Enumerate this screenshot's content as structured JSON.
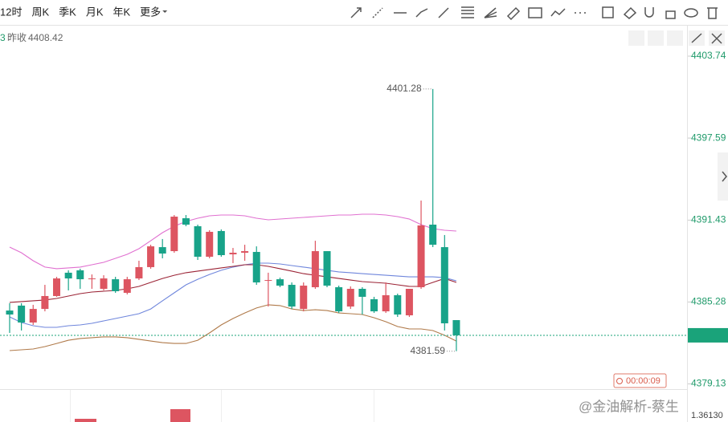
{
  "toolbar": {
    "periods": [
      "12时",
      "周K",
      "季K",
      "月K",
      "年K",
      "更多"
    ]
  },
  "info": {
    "label": "昨收",
    "value": "4408.42"
  },
  "countdown": "00:00:09",
  "watermark": "@金油解析-蔡生",
  "lower_axis_label": "1.36130",
  "chart_data": {
    "type": "candlestick",
    "up_color": "#dd5561",
    "down_color": "#18a389",
    "ylim": [
      4378.74,
      4406.03
    ],
    "yticks": [
      4403.74,
      4397.59,
      4391.43,
      4385.28,
      4379.13
    ],
    "open": [
      4384.64,
      4385.01,
      4383.74,
      4384.76,
      4385.73,
      4387.48,
      4387.66,
      4386.99,
      4386.27,
      4386.99,
      4385.97,
      4387.05,
      4387.9,
      4389.4,
      4389.1,
      4391.57,
      4390.97,
      4388.68,
      4390.61,
      4388.86,
      4388.98,
      4389.04,
      4386.87,
      4386.99,
      4386.57,
      4384.76,
      4386.39,
      4389.1,
      4386.39,
      4384.94,
      4386.27,
      4385.49,
      4384.58,
      4385.79,
      4384.28,
      4386.39,
      4391.09,
      4389.4,
      4383.92
    ],
    "high": [
      4385.19,
      4385.19,
      4385.07,
      4386.57,
      4387.17,
      4387.66,
      4387.78,
      4387.35,
      4387.29,
      4387.17,
      4387.17,
      4388.38,
      4389.58,
      4390.01,
      4391.81,
      4391.81,
      4391.09,
      4390.67,
      4390.73,
      4389.34,
      4389.58,
      4389.46,
      4387.48,
      4387.11,
      4386.75,
      4386.75,
      4389.88,
      4389.1,
      4386.51,
      4386.45,
      4386.39,
      4385.67,
      4386.75,
      4385.91,
      4386.27,
      4392.9,
      4401.28,
      4390.31,
      4383.92
    ],
    "low": [
      4382.96,
      4383.14,
      4383.56,
      4384.58,
      4385.67,
      4386.15,
      4386.27,
      4386.27,
      4386.15,
      4385.97,
      4385.85,
      4386.93,
      4387.78,
      4388.56,
      4388.98,
      4390.97,
      4388.44,
      4388.56,
      4388.68,
      4388.2,
      4388.38,
      4386.57,
      4384.94,
      4386.39,
      4384.76,
      4384.58,
      4386.27,
      4386.39,
      4384.46,
      4384.76,
      4384.34,
      4384.46,
      4384.46,
      4384.16,
      4384.16,
      4386.27,
      4389.4,
      4383.14,
      4381.59
    ],
    "close": [
      4384.34,
      4383.74,
      4384.76,
      4385.73,
      4387.05,
      4387.05,
      4386.99,
      4387.05,
      4387.05,
      4386.09,
      4386.99,
      4387.9,
      4389.46,
      4388.92,
      4391.69,
      4391.09,
      4388.68,
      4390.55,
      4388.8,
      4388.98,
      4389.1,
      4386.75,
      4386.93,
      4386.51,
      4384.94,
      4386.51,
      4389.1,
      4386.51,
      4384.58,
      4386.27,
      4385.67,
      4384.58,
      4385.79,
      4384.34,
      4386.27,
      4391.03,
      4389.58,
      4383.68,
      4382.78
    ],
    "overlays": [
      {
        "color": "#e070d0",
        "values": [
          4389.4,
          4388.98,
          4388.38,
          4387.9,
          4387.78,
          4387.84,
          4387.9,
          4388.08,
          4388.26,
          4388.56,
          4388.86,
          4389.28,
          4389.88,
          4390.49,
          4390.97,
          4391.33,
          4391.57,
          4391.75,
          4391.81,
          4391.81,
          4391.75,
          4391.57,
          4391.45,
          4391.51,
          4391.57,
          4391.63,
          4391.69,
          4391.75,
          4391.81,
          4391.81,
          4391.87,
          4391.87,
          4391.81,
          4391.69,
          4391.51,
          4391.09,
          4390.79,
          4390.67,
          4390.61
        ]
      },
      {
        "color": "#6f86dc",
        "values": [
          4384.16,
          4383.74,
          4383.5,
          4383.38,
          4383.38,
          4383.5,
          4383.56,
          4383.68,
          4383.86,
          4384.04,
          4384.22,
          4384.4,
          4384.76,
          4385.37,
          4385.97,
          4386.57,
          4386.99,
          4387.35,
          4387.66,
          4387.9,
          4388.08,
          4388.2,
          4388.2,
          4388.14,
          4388.02,
          4387.9,
          4387.78,
          4387.66,
          4387.54,
          4387.48,
          4387.41,
          4387.35,
          4387.29,
          4387.23,
          4387.17,
          4387.17,
          4387.17,
          4387.11,
          4386.87
        ]
      },
      {
        "color": "#9b2335",
        "values": [
          4385.25,
          4385.31,
          4385.37,
          4385.43,
          4385.55,
          4385.73,
          4385.91,
          4386.03,
          4386.09,
          4386.15,
          4386.27,
          4386.45,
          4386.75,
          4387.05,
          4387.29,
          4387.48,
          4387.6,
          4387.72,
          4387.84,
          4387.96,
          4388.08,
          4388.08,
          4387.96,
          4387.78,
          4387.6,
          4387.41,
          4387.29,
          4387.17,
          4387.05,
          4386.93,
          4386.81,
          4386.75,
          4386.69,
          4386.57,
          4386.45,
          4386.45,
          4386.75,
          4387.05,
          4386.75
        ]
      },
      {
        "color": "#b07a4a",
        "values": [
          4381.63,
          4381.69,
          4381.75,
          4381.93,
          4382.17,
          4382.41,
          4382.54,
          4382.6,
          4382.66,
          4382.66,
          4382.6,
          4382.48,
          4382.35,
          4382.23,
          4382.17,
          4382.17,
          4382.41,
          4382.96,
          4383.56,
          4384.04,
          4384.46,
          4384.83,
          4385.07,
          4385.01,
          4384.76,
          4384.64,
          4384.7,
          4384.64,
          4384.46,
          4384.4,
          4384.34,
          4384.1,
          4383.8,
          4383.44,
          4383.26,
          4383.26,
          4383.14,
          4382.78,
          4382.35
        ]
      }
    ],
    "price_line_color": "#1aa37a"
  }
}
